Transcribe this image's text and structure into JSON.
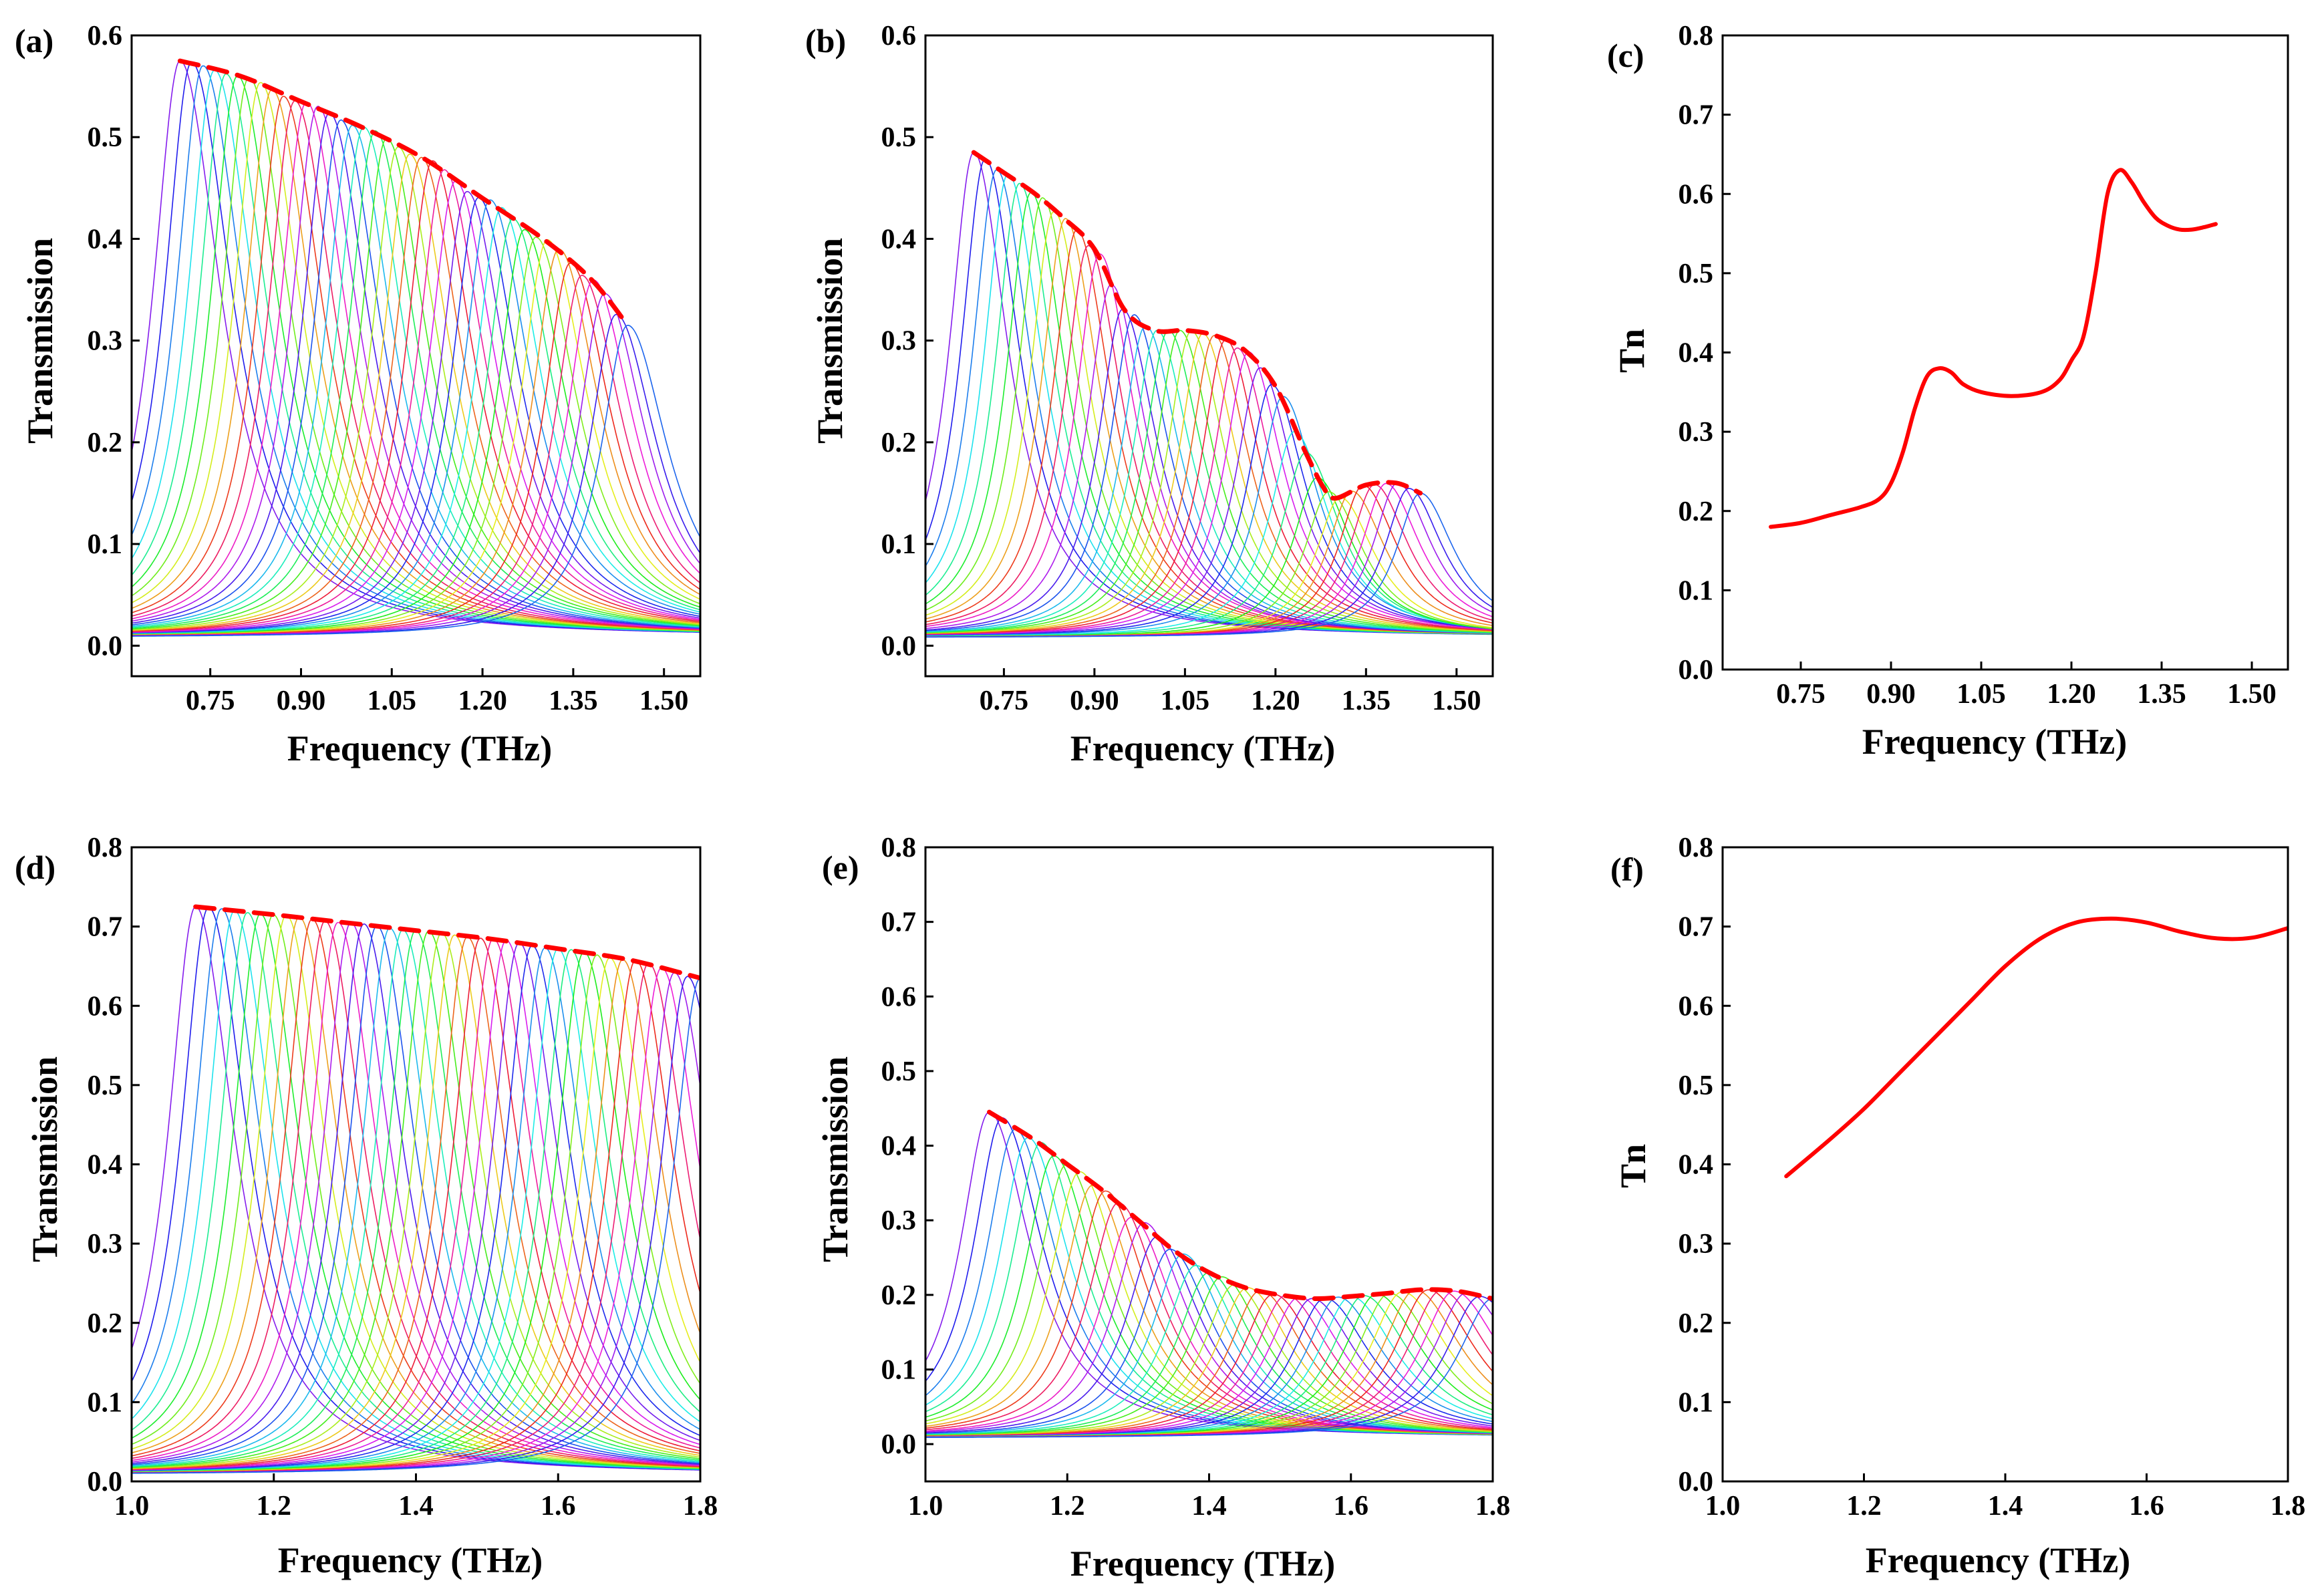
{
  "figure": {
    "colors": {
      "envelope": "#ff0000",
      "tn_line": "#ff0000",
      "axes": "#000000"
    }
  },
  "chart_data": [
    {
      "id": "a",
      "panel_label": "(a)",
      "type": "line",
      "xlabel": "Frequency (THz)",
      "ylabel": "Transmission",
      "xlim": [
        0.62,
        1.56
      ],
      "ylim": [
        -0.03,
        0.6
      ],
      "xticks": [
        0.75,
        0.9,
        1.05,
        1.2,
        1.35,
        1.5
      ],
      "xtick_labels": [
        "0.75",
        "0.90",
        "1.05",
        "1.20",
        "1.35",
        "1.50"
      ],
      "yticks": [
        0.0,
        0.1,
        0.2,
        0.3,
        0.4,
        0.5,
        0.6
      ],
      "ytick_labels": [
        "0.0",
        "0.1",
        "0.2",
        "0.3",
        "0.4",
        "0.5",
        "0.6"
      ],
      "family": {
        "count": 40,
        "f_start": 0.7,
        "f_end": 1.44,
        "width_start": 0.055,
        "width_end": 0.055,
        "skew": 1.5,
        "baseline": 0.008
      },
      "envelope": {
        "name": "peak envelope",
        "x": [
          0.7,
          0.8,
          0.9,
          1.0,
          1.1,
          1.2,
          1.3,
          1.38,
          1.44
        ],
        "y": [
          0.575,
          0.56,
          0.535,
          0.51,
          0.48,
          0.44,
          0.4,
          0.36,
          0.315
        ]
      }
    },
    {
      "id": "b",
      "panel_label": "(b)",
      "type": "line",
      "xlabel": "Frequency (THz)",
      "ylabel": "Transmission",
      "xlim": [
        0.62,
        1.56
      ],
      "ylim": [
        -0.03,
        0.6
      ],
      "xticks": [
        0.75,
        0.9,
        1.05,
        1.2,
        1.35,
        1.5
      ],
      "xtick_labels": [
        "0.75",
        "0.90",
        "1.05",
        "1.20",
        "1.35",
        "1.50"
      ],
      "yticks": [
        0.0,
        0.1,
        0.2,
        0.3,
        0.4,
        0.5,
        0.6
      ],
      "ytick_labels": [
        "0.0",
        "0.1",
        "0.2",
        "0.3",
        "0.4",
        "0.5",
        "0.6"
      ],
      "family": {
        "count": 40,
        "f_start": 0.7,
        "f_end": 1.44,
        "width_start": 0.05,
        "width_end": 0.05,
        "skew": 1.4,
        "baseline": 0.008
      },
      "envelope": {
        "name": "peak envelope",
        "x": [
          0.7,
          0.75,
          0.8,
          0.85,
          0.9,
          0.95,
          1.0,
          1.05,
          1.1,
          1.15,
          1.2,
          1.25,
          1.28,
          1.3,
          1.35,
          1.4,
          1.44
        ],
        "y": [
          0.485,
          0.465,
          0.445,
          0.42,
          0.39,
          0.33,
          0.31,
          0.31,
          0.305,
          0.29,
          0.255,
          0.19,
          0.155,
          0.145,
          0.158,
          0.16,
          0.15
        ]
      }
    },
    {
      "id": "c",
      "panel_label": "(c)",
      "type": "line",
      "xlabel": "Frequency (THz)",
      "ylabel": "Tn",
      "xlim": [
        0.62,
        1.56
      ],
      "ylim": [
        0.0,
        0.8
      ],
      "xticks": [
        0.75,
        0.9,
        1.05,
        1.2,
        1.35,
        1.5
      ],
      "xtick_labels": [
        "0.75",
        "0.90",
        "1.05",
        "1.20",
        "1.35",
        "1.50"
      ],
      "yticks": [
        0.0,
        0.1,
        0.2,
        0.3,
        0.4,
        0.5,
        0.6,
        0.7,
        0.8
      ],
      "ytick_labels": [
        "0.0",
        "0.1",
        "0.2",
        "0.3",
        "0.4",
        "0.5",
        "0.6",
        "0.7",
        "0.8"
      ],
      "series": [
        {
          "name": "Tn",
          "x": [
            0.7,
            0.75,
            0.8,
            0.85,
            0.88,
            0.9,
            0.92,
            0.94,
            0.96,
            0.98,
            1.0,
            1.02,
            1.05,
            1.1,
            1.15,
            1.18,
            1.2,
            1.22,
            1.24,
            1.26,
            1.28,
            1.3,
            1.32,
            1.34,
            1.36,
            1.38,
            1.4,
            1.42,
            1.44
          ],
          "y": [
            0.18,
            0.185,
            0.195,
            0.205,
            0.215,
            0.235,
            0.275,
            0.33,
            0.37,
            0.38,
            0.375,
            0.36,
            0.35,
            0.345,
            0.35,
            0.365,
            0.39,
            0.42,
            0.5,
            0.6,
            0.63,
            0.615,
            0.59,
            0.57,
            0.56,
            0.555,
            0.555,
            0.558,
            0.562
          ]
        }
      ]
    },
    {
      "id": "d",
      "panel_label": "(d)",
      "type": "line",
      "xlabel": "Frequency (THz)",
      "ylabel": "Transmission",
      "xlim": [
        1.0,
        1.8
      ],
      "ylim": [
        0.0,
        0.8
      ],
      "xticks": [
        1.0,
        1.2,
        1.4,
        1.6,
        1.8
      ],
      "xtick_labels": [
        "1.0",
        "1.2",
        "1.4",
        "1.6",
        "1.8"
      ],
      "yticks": [
        0.0,
        0.1,
        0.2,
        0.3,
        0.4,
        0.5,
        0.6,
        0.7,
        0.8
      ],
      "ytick_labels": [
        "0.0",
        "0.1",
        "0.2",
        "0.3",
        "0.4",
        "0.5",
        "0.6",
        "0.7",
        "0.8"
      ],
      "family": {
        "count": 40,
        "f_start": 1.09,
        "f_end": 1.8,
        "width_start": 0.048,
        "width_end": 0.048,
        "skew": 1.4,
        "baseline": 0.008
      },
      "envelope": {
        "name": "peak envelope",
        "x": [
          1.09,
          1.2,
          1.3,
          1.4,
          1.5,
          1.6,
          1.7,
          1.8
        ],
        "y": [
          0.725,
          0.715,
          0.705,
          0.695,
          0.685,
          0.672,
          0.658,
          0.635
        ]
      }
    },
    {
      "id": "e",
      "panel_label": "(e)",
      "type": "line",
      "xlabel": "Frequency (THz)",
      "ylabel": "Transmission",
      "xlim": [
        1.0,
        1.8
      ],
      "ylim": [
        -0.05,
        0.8
      ],
      "xticks": [
        1.0,
        1.2,
        1.4,
        1.6,
        1.8
      ],
      "xtick_labels": [
        "1.0",
        "1.2",
        "1.4",
        "1.6",
        "1.8"
      ],
      "yticks": [
        0.0,
        0.1,
        0.2,
        0.3,
        0.4,
        0.5,
        0.6,
        0.7,
        0.8
      ],
      "ytick_labels": [
        "0.0",
        "0.1",
        "0.2",
        "0.3",
        "0.4",
        "0.5",
        "0.6",
        "0.7",
        "0.8"
      ],
      "family": {
        "count": 40,
        "f_start": 1.09,
        "f_end": 1.8,
        "width_start": 0.05,
        "width_end": 0.06,
        "skew": 1.4,
        "baseline": 0.008
      },
      "envelope": {
        "name": "peak envelope",
        "x": [
          1.09,
          1.15,
          1.2,
          1.25,
          1.3,
          1.35,
          1.4,
          1.45,
          1.5,
          1.55,
          1.6,
          1.65,
          1.7,
          1.75,
          1.8
        ],
        "y": [
          0.445,
          0.41,
          0.375,
          0.34,
          0.3,
          0.26,
          0.23,
          0.21,
          0.2,
          0.195,
          0.198,
          0.202,
          0.207,
          0.205,
          0.195
        ]
      }
    },
    {
      "id": "f",
      "panel_label": "(f)",
      "type": "line",
      "xlabel": "Frequency (THz)",
      "ylabel": "Tn",
      "xlim": [
        1.0,
        1.8
      ],
      "ylim": [
        0.0,
        0.8
      ],
      "xticks": [
        1.0,
        1.2,
        1.4,
        1.6,
        1.8
      ],
      "xtick_labels": [
        "1.0",
        "1.2",
        "1.4",
        "1.6",
        "1.8"
      ],
      "yticks": [
        0.0,
        0.1,
        0.2,
        0.3,
        0.4,
        0.5,
        0.6,
        0.7,
        0.8
      ],
      "ytick_labels": [
        "0.0",
        "0.1",
        "0.2",
        "0.3",
        "0.4",
        "0.5",
        "0.6",
        "0.7",
        "0.8"
      ],
      "series": [
        {
          "name": "Tn",
          "x": [
            1.09,
            1.15,
            1.2,
            1.25,
            1.3,
            1.35,
            1.4,
            1.45,
            1.5,
            1.55,
            1.6,
            1.65,
            1.7,
            1.75,
            1.8
          ],
          "y": [
            0.385,
            0.43,
            0.47,
            0.515,
            0.56,
            0.605,
            0.65,
            0.685,
            0.705,
            0.71,
            0.705,
            0.693,
            0.685,
            0.686,
            0.698
          ]
        }
      ]
    }
  ]
}
